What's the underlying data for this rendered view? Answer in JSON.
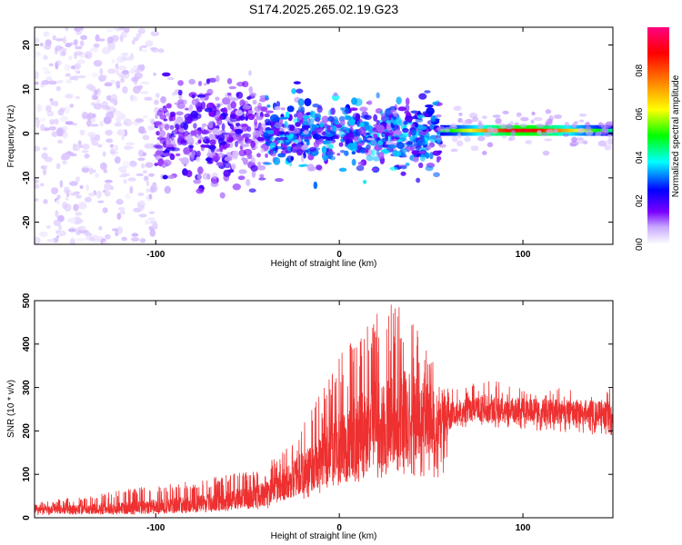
{
  "title": "S174.2025.265.02.19.G23",
  "chart_data": [
    {
      "type": "heatmap",
      "xlabel": "Height of straight line (km)",
      "ylabel": "Frequency (Hz)",
      "xlim": [
        -166,
        149
      ],
      "ylim": [
        -25,
        24
      ],
      "xticks": [
        -100,
        0,
        100
      ],
      "yticks": [
        -20,
        -10,
        0,
        10,
        20
      ],
      "grid": false,
      "colorbar": {
        "label": "Normalized spectral amplitude",
        "range": [
          0.0,
          1.0
        ],
        "ticks": [
          0.0,
          0.2,
          0.4,
          0.6,
          0.8
        ],
        "colors": [
          "#ffffff",
          "#c8a8ff",
          "#7a00ff",
          "#0000ff",
          "#00ffff",
          "#00ff00",
          "#ffff00",
          "#ff8000",
          "#ff0000",
          "#ff0080"
        ]
      },
      "regions": [
        {
          "x_range": [
            -166,
            -100
          ],
          "typical_amplitude": 0.05,
          "freq_spread_hz": 24
        },
        {
          "x_range": [
            -100,
            -40
          ],
          "typical_amplitude": 0.15,
          "freq_spread_hz": 12
        },
        {
          "x_range": [
            -40,
            55
          ],
          "typical_amplitude": 0.25,
          "freq_spread_hz": 8
        },
        {
          "x_range": [
            55,
            149
          ],
          "typical_amplitude": 0.75,
          "center_freq_hz": 0.7,
          "band_halfwidth_hz": 1.2
        }
      ]
    },
    {
      "type": "line",
      "xlabel": "Height of straight line (km)",
      "ylabel": "SNR (10 * v/v)",
      "xlim": [
        -166,
        149
      ],
      "ylim": [
        0,
        500
      ],
      "xticks": [
        -100,
        0,
        100
      ],
      "yticks": [
        0,
        100,
        200,
        300,
        400,
        500
      ],
      "color": "#ee3030",
      "envelope": {
        "x": [
          -166,
          -140,
          -110,
          -80,
          -60,
          -40,
          -25,
          -10,
          0,
          10,
          20,
          28,
          35,
          42,
          50,
          56,
          62,
          80,
          100,
          120,
          149
        ],
        "mean": [
          18,
          20,
          22,
          30,
          40,
          55,
          90,
          130,
          160,
          190,
          215,
          230,
          235,
          230,
          225,
          225,
          245,
          250,
          248,
          245,
          240
        ],
        "low": [
          5,
          8,
          12,
          12,
          15,
          20,
          35,
          55,
          70,
          80,
          90,
          95,
          100,
          95,
          90,
          80,
          210,
          200,
          200,
          195,
          190
        ],
        "high": [
          35,
          50,
          70,
          85,
          100,
          120,
          190,
          290,
          380,
          420,
          480,
          500,
          480,
          440,
          380,
          330,
          300,
          320,
          300,
          300,
          300
        ]
      }
    }
  ]
}
